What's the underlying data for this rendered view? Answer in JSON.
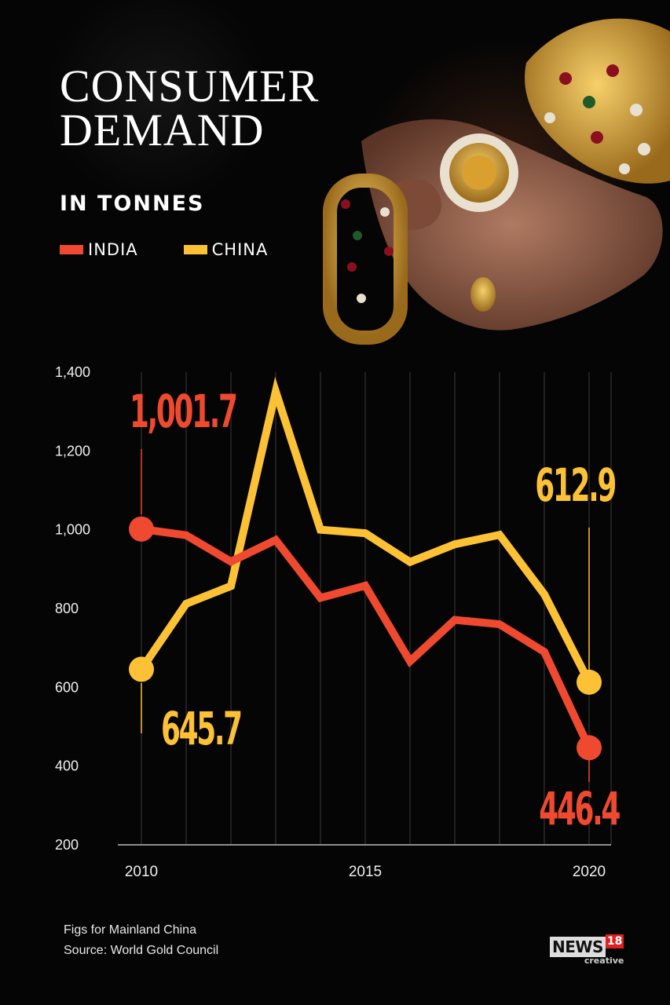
{
  "header": {
    "title_line1": "CONSUMER",
    "title_line2": "DEMAND",
    "subtitle": "IN TONNES"
  },
  "legend": [
    {
      "label": "INDIA",
      "color": "#ef4a2f"
    },
    {
      "label": "CHINA",
      "color": "#fdc136"
    }
  ],
  "chart_data": {
    "type": "line",
    "title": "CONSUMER DEMAND",
    "subtitle": "IN TONNES",
    "x": [
      2010,
      2011,
      2012,
      2013,
      2014,
      2015,
      2016,
      2017,
      2018,
      2019,
      2020
    ],
    "x_tick_labels": [
      "2010",
      "2015",
      "2020"
    ],
    "y_tick_labels": [
      "1,400",
      "1,200",
      "1,000",
      "800",
      "600",
      "400",
      "200"
    ],
    "ylim": [
      200,
      1400
    ],
    "grid": "vertical",
    "series": [
      {
        "name": "INDIA",
        "color": "#ef4a2f",
        "values": [
          1001.7,
          986,
          919,
          974,
          827,
          858,
          666,
          771,
          760,
          690,
          446.4
        ]
      },
      {
        "name": "CHINA",
        "color": "#fdc136",
        "values": [
          645.7,
          812,
          857,
          1351,
          1000,
          991,
          918,
          963,
          987,
          836,
          612.9
        ]
      }
    ],
    "annotations": [
      {
        "text": "1,001.7",
        "series": "INDIA",
        "x": 2010
      },
      {
        "text": "645.7",
        "series": "CHINA",
        "x": 2010
      },
      {
        "text": "612.9",
        "series": "CHINA",
        "x": 2020
      },
      {
        "text": "446.4",
        "series": "INDIA",
        "x": 2020
      }
    ]
  },
  "footer": {
    "note": "Figs for Mainland China",
    "source": "Source: World Gold Council"
  },
  "logo": {
    "news": "NEWS",
    "number": "18",
    "sub": "creative"
  }
}
